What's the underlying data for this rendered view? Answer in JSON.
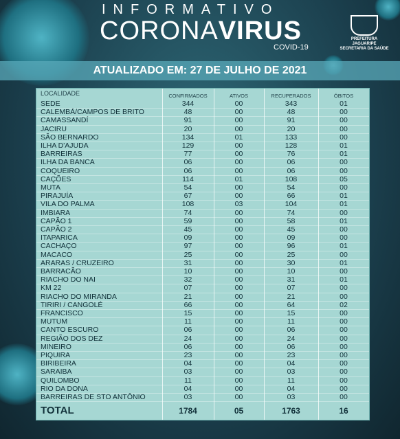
{
  "header": {
    "title_top": "INFORMATIVO",
    "title_corona": "CORONA",
    "title_virus": "VIRUS",
    "subtitle": "COVID-19",
    "logo_lines": [
      "PREFEITURA",
      "JAGUARIPE",
      "SECRETARIA DA SAÚDE"
    ]
  },
  "updated": "ATUALIZADO EM: 27 DE JULHO DE 2021",
  "table": {
    "columns": [
      "LOCALIDADE",
      "CONFIRMADOS",
      "ATIVOS",
      "RECUPERADOS",
      "ÓBITOS"
    ],
    "rows": [
      [
        "SEDE",
        "344",
        "00",
        "343",
        "01"
      ],
      [
        "CALEMBÁ/CAMPOS DE BRITO",
        "48",
        "00",
        "48",
        "00"
      ],
      [
        "CAMASSANDÍ",
        "91",
        "00",
        "91",
        "00"
      ],
      [
        "JACIRU",
        "20",
        "00",
        "20",
        "00"
      ],
      [
        "SÃO BERNARDO",
        "134",
        "01",
        "133",
        "00"
      ],
      [
        "ILHA D'AJUDA",
        "129",
        "00",
        "128",
        "01"
      ],
      [
        "BARREIRAS",
        "77",
        "00",
        "76",
        "01"
      ],
      [
        "ILHA DA BANCA",
        "06",
        "00",
        "06",
        "00"
      ],
      [
        "COQUEIRO",
        "06",
        "00",
        "06",
        "00"
      ],
      [
        "CAÇÕES",
        "114",
        "01",
        "108",
        "05"
      ],
      [
        "MUTA",
        "54",
        "00",
        "54",
        "00"
      ],
      [
        "PIRAJUÍA",
        "67",
        "00",
        "66",
        "01"
      ],
      [
        "VILA DO PALMA",
        "108",
        "03",
        "104",
        "01"
      ],
      [
        "IMBIARA",
        "74",
        "00",
        "74",
        "00"
      ],
      [
        "CAPÃO 1",
        "59",
        "00",
        "58",
        "01"
      ],
      [
        "CAPÃO 2",
        "45",
        "00",
        "45",
        "00"
      ],
      [
        "ITAPARICA",
        "09",
        "00",
        "09",
        "00"
      ],
      [
        "CACHAÇO",
        "97",
        "00",
        "96",
        "01"
      ],
      [
        "MACACO",
        "25",
        "00",
        "25",
        "00"
      ],
      [
        "ARARAS / CRUZEIRO",
        "31",
        "00",
        "30",
        "01"
      ],
      [
        "BARRACÃO",
        "10",
        "00",
        "10",
        "00"
      ],
      [
        "RIACHO DO NAI",
        "32",
        "00",
        "31",
        "01"
      ],
      [
        "KM 22",
        "07",
        "00",
        "07",
        "00"
      ],
      [
        "RIACHO DO MIRANDA",
        "21",
        "00",
        "21",
        "00"
      ],
      [
        "TIRIRI / CANGOLÉ",
        "66",
        "00",
        "64",
        "02"
      ],
      [
        "FRANCISCO",
        "15",
        "00",
        "15",
        "00"
      ],
      [
        "MUTUM",
        "11",
        "00",
        "11",
        "00"
      ],
      [
        "CANTO ESCURO",
        "06",
        "00",
        "06",
        "00"
      ],
      [
        "REGIÃO DOS DEZ",
        "24",
        "00",
        "24",
        "00"
      ],
      [
        "MINEIRO",
        "06",
        "00",
        "06",
        "00"
      ],
      [
        "PIQUIRA",
        "23",
        "00",
        "23",
        "00"
      ],
      [
        "BIRIBEIRA",
        "04",
        "00",
        "04",
        "00"
      ],
      [
        "SARAIBA",
        "03",
        "00",
        "03",
        "00"
      ],
      [
        "QUILOMBO",
        "11",
        "00",
        "11",
        "00"
      ],
      [
        "RIO DA DONA",
        "04",
        "00",
        "04",
        "00"
      ],
      [
        "BARREIRAS DE STO ANTÔNIO",
        "03",
        "00",
        "03",
        "00"
      ]
    ],
    "total": [
      "TOTAL",
      "1784",
      "05",
      "1763",
      "16"
    ]
  }
}
